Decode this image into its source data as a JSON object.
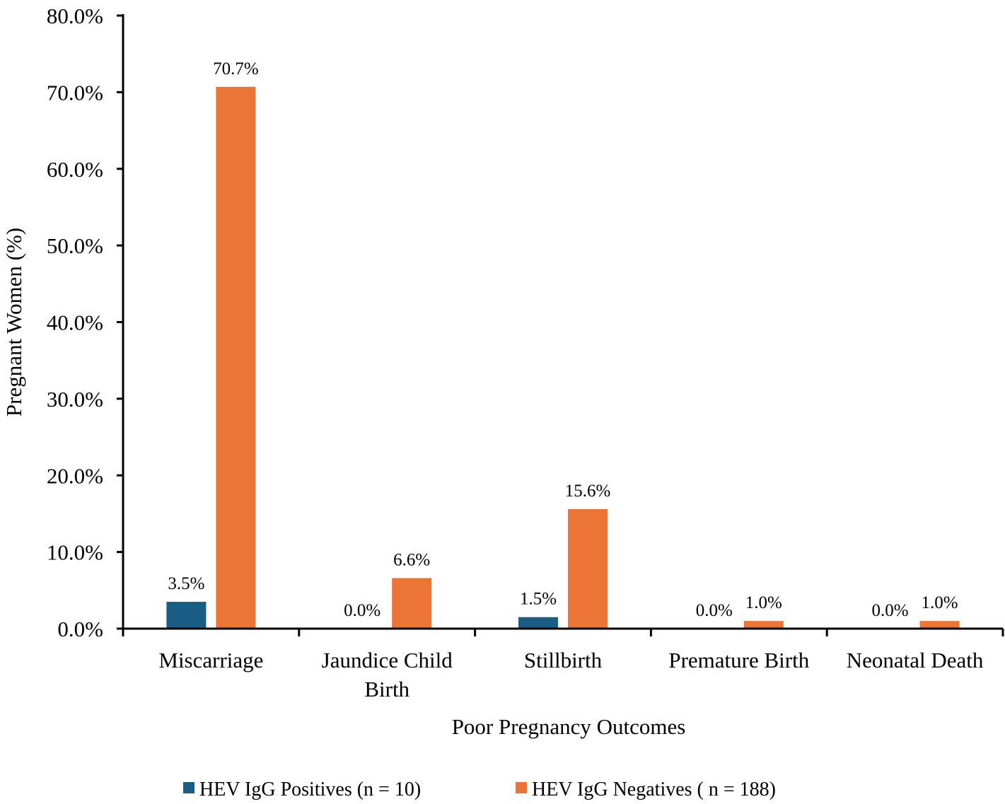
{
  "chart_data": {
    "type": "bar",
    "title": "",
    "xlabel": "Poor Pregnancy Outcomes",
    "ylabel": "Pregnant Women (%)",
    "ylim": [
      0,
      80
    ],
    "yticks": [
      "0.0%",
      "10.0%",
      "20.0%",
      "30.0%",
      "40.0%",
      "50.0%",
      "60.0%",
      "70.0%",
      "80.0%"
    ],
    "categories": [
      [
        "Miscarriage"
      ],
      [
        "Jaundice Child",
        "Birth"
      ],
      [
        "Stillbirth"
      ],
      [
        "Premature Birth"
      ],
      [
        "Neonatal Death"
      ]
    ],
    "series": [
      {
        "name": "HEV IgG Positives (n = 10)",
        "color": "#1a5e85",
        "values": [
          3.5,
          0.0,
          1.5,
          0.0,
          0.0
        ],
        "labels": [
          "3.5%",
          "0.0%",
          "1.5%",
          "0.0%",
          "0.0%"
        ]
      },
      {
        "name": "HEV IgG Negatives ( n = 188)",
        "color": "#ea7536",
        "values": [
          70.7,
          6.6,
          15.6,
          1.0,
          1.0
        ],
        "labels": [
          "70.7%",
          "6.6%",
          "15.6%",
          "1.0%",
          "1.0%"
        ]
      }
    ],
    "grid": false,
    "legend_position": "bottom"
  }
}
